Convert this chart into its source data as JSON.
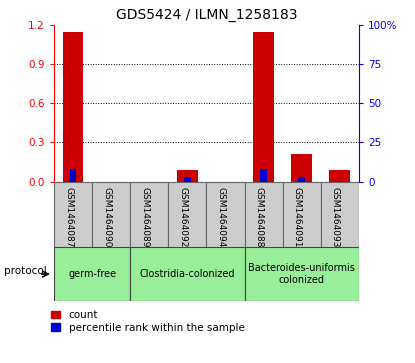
{
  "title": "GDS5424 / ILMN_1258183",
  "samples": [
    "GSM1464087",
    "GSM1464090",
    "GSM1464089",
    "GSM1464092",
    "GSM1464094",
    "GSM1464088",
    "GSM1464091",
    "GSM1464093"
  ],
  "red_values": [
    1.15,
    0.0,
    0.0,
    0.09,
    0.0,
    1.15,
    0.21,
    0.09
  ],
  "blue_pct": [
    8,
    0,
    0,
    3,
    0,
    8,
    3,
    0
  ],
  "ylim_left": [
    0,
    1.2
  ],
  "ylim_right": [
    0,
    100
  ],
  "yticks_left": [
    0,
    0.3,
    0.6,
    0.9,
    1.2
  ],
  "yticks_right": [
    0,
    25,
    50,
    75,
    100
  ],
  "ytick_labels_right": [
    "0",
    "25",
    "50",
    "75",
    "100%"
  ],
  "bar_color_red": "#cc0000",
  "bar_color_blue": "#0000cc",
  "background_color": "#ffffff",
  "sample_box_color": "#cccccc",
  "group_box_color": "#99ee99",
  "legend_count": "count",
  "legend_pct": "percentile rank within the sample",
  "protocol_label": "protocol",
  "group_info": [
    {
      "label": "germ-free",
      "cols": [
        0,
        1
      ]
    },
    {
      "label": "Clostridia-colonized",
      "cols": [
        2,
        3,
        4
      ]
    },
    {
      "label": "Bacteroides-uniformis\ncolonized",
      "cols": [
        5,
        6,
        7
      ]
    }
  ]
}
